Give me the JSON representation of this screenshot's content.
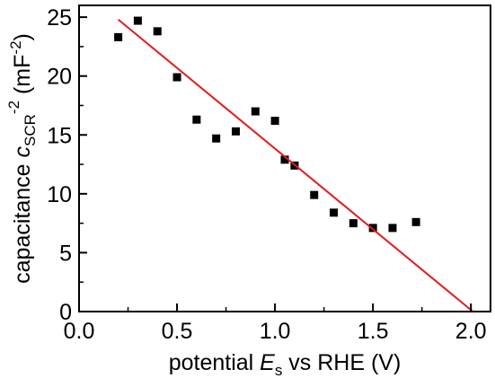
{
  "chart_data": {
    "type": "scatter",
    "xlabel": {
      "prefix": "potential ",
      "symbol": "E",
      "subscript": "s",
      "suffix": " vs RHE (V)"
    },
    "ylabel": {
      "prefix": "capacitance ",
      "symbol": "c",
      "subscript": "SCR",
      "superscript": "-2",
      "unit_prefix": " (mF",
      "unit_superscript": "-2",
      "unit_suffix": ")"
    },
    "xlim": [
      0.0,
      2.1
    ],
    "ylim": [
      0,
      26
    ],
    "x_ticks": [
      "0.0",
      "0.5",
      "1.0",
      "1.5",
      "2.0"
    ],
    "y_ticks": [
      "0",
      "5",
      "10",
      "15",
      "20",
      "25"
    ],
    "series": [
      {
        "kind": "points",
        "marker": "square",
        "color": "#000000",
        "x": [
          0.2,
          0.3,
          0.4,
          0.5,
          0.6,
          0.7,
          0.8,
          0.9,
          1.0,
          1.05,
          1.1,
          1.2,
          1.3,
          1.4,
          1.5,
          1.6,
          1.72
        ],
        "y": [
          23.3,
          24.7,
          23.8,
          19.9,
          16.3,
          14.7,
          15.3,
          17.0,
          16.2,
          12.9,
          12.4,
          9.9,
          8.4,
          7.5,
          7.1,
          7.1,
          7.6
        ]
      },
      {
        "kind": "fit-line",
        "color": "#e41a1c",
        "x": [
          0.2,
          2.01
        ],
        "y": [
          24.8,
          0
        ]
      }
    ]
  }
}
